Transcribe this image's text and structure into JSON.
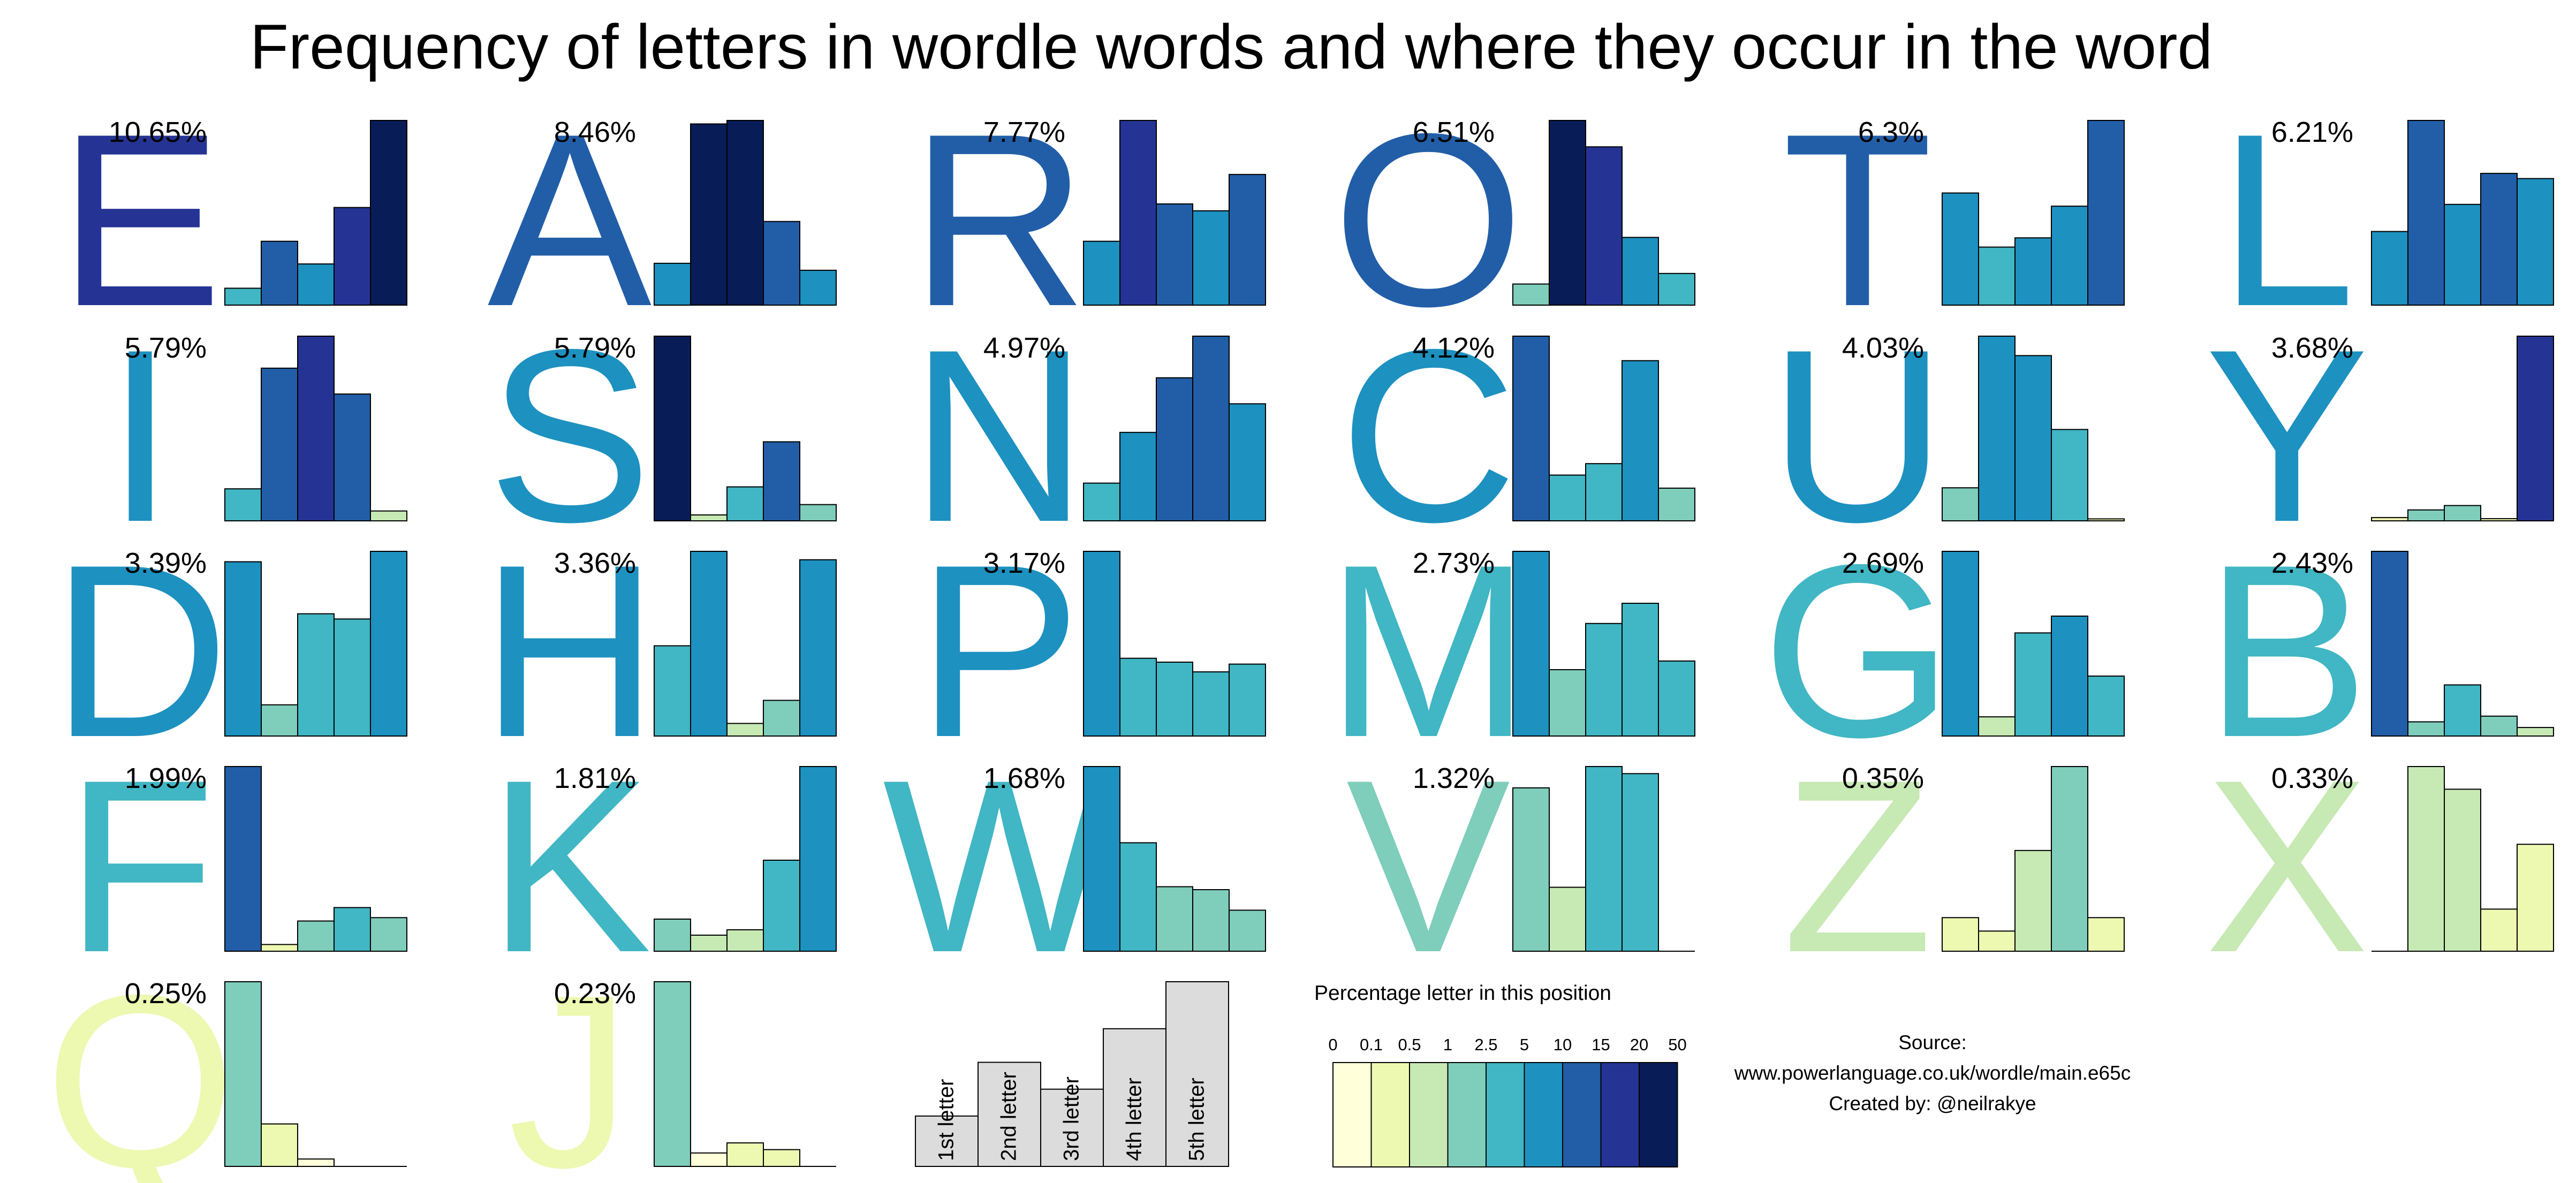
{
  "title": "Frequency of letters in wordle words and where they occur in the word",
  "chart_data": {
    "type": "bar",
    "description_of_panels": "small multiples",
    "positions": [
      "1st letter",
      "2nd letter",
      "3rd letter",
      "4th letter",
      "5th letter"
    ],
    "letters": [
      {
        "letter": "E",
        "total": "10.65%",
        "values": [
          3.2,
          12.1,
          7.8,
          18.5,
          35.0
        ]
      },
      {
        "letter": "A",
        "total": "8.46%",
        "values": [
          6.0,
          26.0,
          26.5,
          12.0,
          5.0
        ]
      },
      {
        "letter": "R",
        "total": "7.77%",
        "values": [
          6.5,
          18.8,
          10.3,
          9.6,
          13.3
        ]
      },
      {
        "letter": "O",
        "total": "6.51%",
        "values": [
          2.4,
          21.0,
          18.0,
          7.7,
          3.6
        ]
      },
      {
        "letter": "T",
        "total": "6.3%",
        "values": [
          8.5,
          4.4,
          5.1,
          7.5,
          14.0
        ]
      },
      {
        "letter": "L",
        "total": "6.21%",
        "values": [
          5.7,
          14.3,
          7.8,
          10.2,
          9.8
        ]
      },
      {
        "letter": "I",
        "total": "5.79%",
        "values": [
          2.6,
          12.4,
          15.0,
          10.3,
          0.8
        ]
      },
      {
        "letter": "S",
        "total": "5.79%",
        "values": [
          25.0,
          0.8,
          4.6,
          10.7,
          2.2
        ]
      },
      {
        "letter": "N",
        "total": "4.97%",
        "values": [
          2.9,
          6.8,
          11.0,
          14.2,
          9.0
        ]
      },
      {
        "letter": "C",
        "total": "4.12%",
        "values": [
          11.3,
          2.8,
          3.5,
          9.8,
          2.0
        ]
      },
      {
        "letter": "U",
        "total": "4.03%",
        "values": [
          1.7,
          9.5,
          8.5,
          4.7,
          0.1
        ]
      },
      {
        "letter": "Y",
        "total": "3.68%",
        "values": [
          0.3,
          1.0,
          1.4,
          0.2,
          16.9
        ]
      },
      {
        "letter": "D",
        "total": "3.39%",
        "values": [
          6.7,
          1.2,
          4.7,
          4.5,
          7.1
        ]
      },
      {
        "letter": "H",
        "total": "3.36%",
        "values": [
          4.3,
          8.8,
          0.6,
          1.7,
          8.4
        ]
      },
      {
        "letter": "P",
        "total": "3.17%",
        "values": [
          9.5,
          4.0,
          3.8,
          3.3,
          3.7
        ]
      },
      {
        "letter": "M",
        "total": "2.73%",
        "values": [
          6.4,
          2.3,
          3.9,
          4.6,
          2.6
        ]
      },
      {
        "letter": "G",
        "total": "2.69%",
        "values": [
          7.7,
          0.8,
          4.3,
          5.0,
          2.5
        ]
      },
      {
        "letter": "B",
        "total": "2.43%",
        "values": [
          13.0,
          1.0,
          3.6,
          1.4,
          0.6
        ]
      },
      {
        "letter": "F",
        "total": "1.99%",
        "values": [
          11.0,
          0.4,
          1.8,
          2.6,
          2.0
        ]
      },
      {
        "letter": "K",
        "total": "1.81%",
        "values": [
          1.2,
          0.6,
          0.8,
          3.4,
          6.9
        ]
      },
      {
        "letter": "W",
        "total": "1.68%",
        "values": [
          6.3,
          3.7,
          2.2,
          2.1,
          1.4
        ]
      },
      {
        "letter": "V",
        "total": "1.32%",
        "values": [
          2.3,
          0.9,
          2.6,
          2.5,
          0.0
        ]
      },
      {
        "letter": "Z",
        "total": "0.35%",
        "values": [
          0.2,
          0.12,
          0.6,
          1.1,
          0.2
        ]
      },
      {
        "letter": "X",
        "total": "0.33%",
        "values": [
          0.0,
          0.57,
          0.5,
          0.13,
          0.33
        ]
      },
      {
        "letter": "Q",
        "total": "0.25%",
        "values": [
          1.0,
          0.23,
          0.04,
          0.0,
          0.0
        ]
      },
      {
        "letter": "J",
        "total": "0.23%",
        "values": [
          1.1,
          0.08,
          0.14,
          0.1,
          0.0
        ]
      }
    ],
    "example_panel": {
      "values": [
        1.5,
        3.1,
        2.3,
        4.1,
        5.5
      ],
      "labels": [
        "1st letter",
        "2nd letter",
        "3rd letter",
        "4th letter",
        "5th letter"
      ]
    },
    "legend": {
      "title": "Percentage letter in this position",
      "ticks": [
        "0",
        "0.1",
        "0.5",
        "1",
        "2.5",
        "5",
        "10",
        "15",
        "20",
        "50"
      ],
      "colors": [
        "#ffffd9",
        "#edf8b1",
        "#c7e9b4",
        "#7fcdbb",
        "#41b6c4",
        "#1d91c0",
        "#225ea8",
        "#253494",
        "#081d58"
      ]
    }
  },
  "source": {
    "line1": "Source:",
    "line2": "www.powerlanguage.co.uk/wordle/main.e65c",
    "line3": "Created by: @neilrakye"
  }
}
